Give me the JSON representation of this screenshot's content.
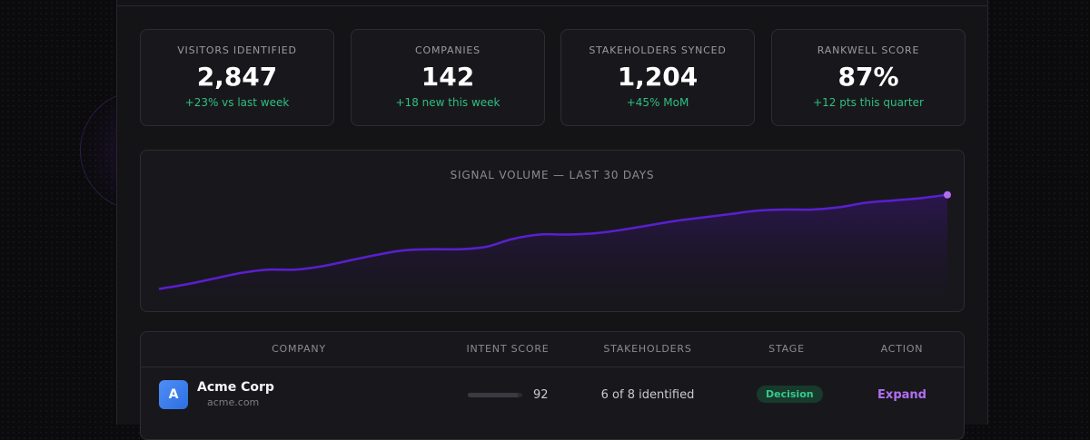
{
  "stats": [
    {
      "label": "VISITORS IDENTIFIED",
      "value": "2,847",
      "delta": "+23% vs last week"
    },
    {
      "label": "COMPANIES",
      "value": "142",
      "delta": "+18 new this week"
    },
    {
      "label": "STAKEHOLDERS SYNCED",
      "value": "1,204",
      "delta": "+45% MoM"
    },
    {
      "label": "RANKWELL SCORE",
      "value": "87%",
      "delta": "+12 pts this quarter"
    }
  ],
  "chart_data": {
    "type": "area",
    "title": "SIGNAL VOLUME — LAST 30 DAYS",
    "x": [
      1,
      2,
      3,
      4,
      5,
      6,
      7,
      8,
      9,
      10,
      11,
      12,
      13,
      14,
      15,
      16,
      17,
      18,
      19,
      20,
      21,
      22,
      23,
      24,
      25,
      26,
      27,
      28,
      29,
      30
    ],
    "values": [
      10,
      14,
      19,
      24,
      27,
      27,
      30,
      35,
      40,
      44,
      45,
      45,
      47,
      54,
      58,
      58,
      59,
      62,
      66,
      70,
      73,
      76,
      79,
      80,
      80,
      82,
      86,
      88,
      90,
      93
    ],
    "ylim": [
      0,
      100
    ],
    "colors": {
      "line": "#5a1fd0",
      "marker": "#b36ef2"
    }
  },
  "table": {
    "headers": {
      "company": "COMPANY",
      "intent": "INTENT SCORE",
      "stakeholders": "STAKEHOLDERS",
      "stage": "STAGE",
      "action": "ACTION"
    },
    "rows": [
      {
        "avatar_letter": "A",
        "company": "Acme Corp",
        "domain": "acme.com",
        "intent_score": "92",
        "stakeholders": "6 of 8 identified",
        "stage": "Decision",
        "action": "Expand"
      }
    ]
  }
}
